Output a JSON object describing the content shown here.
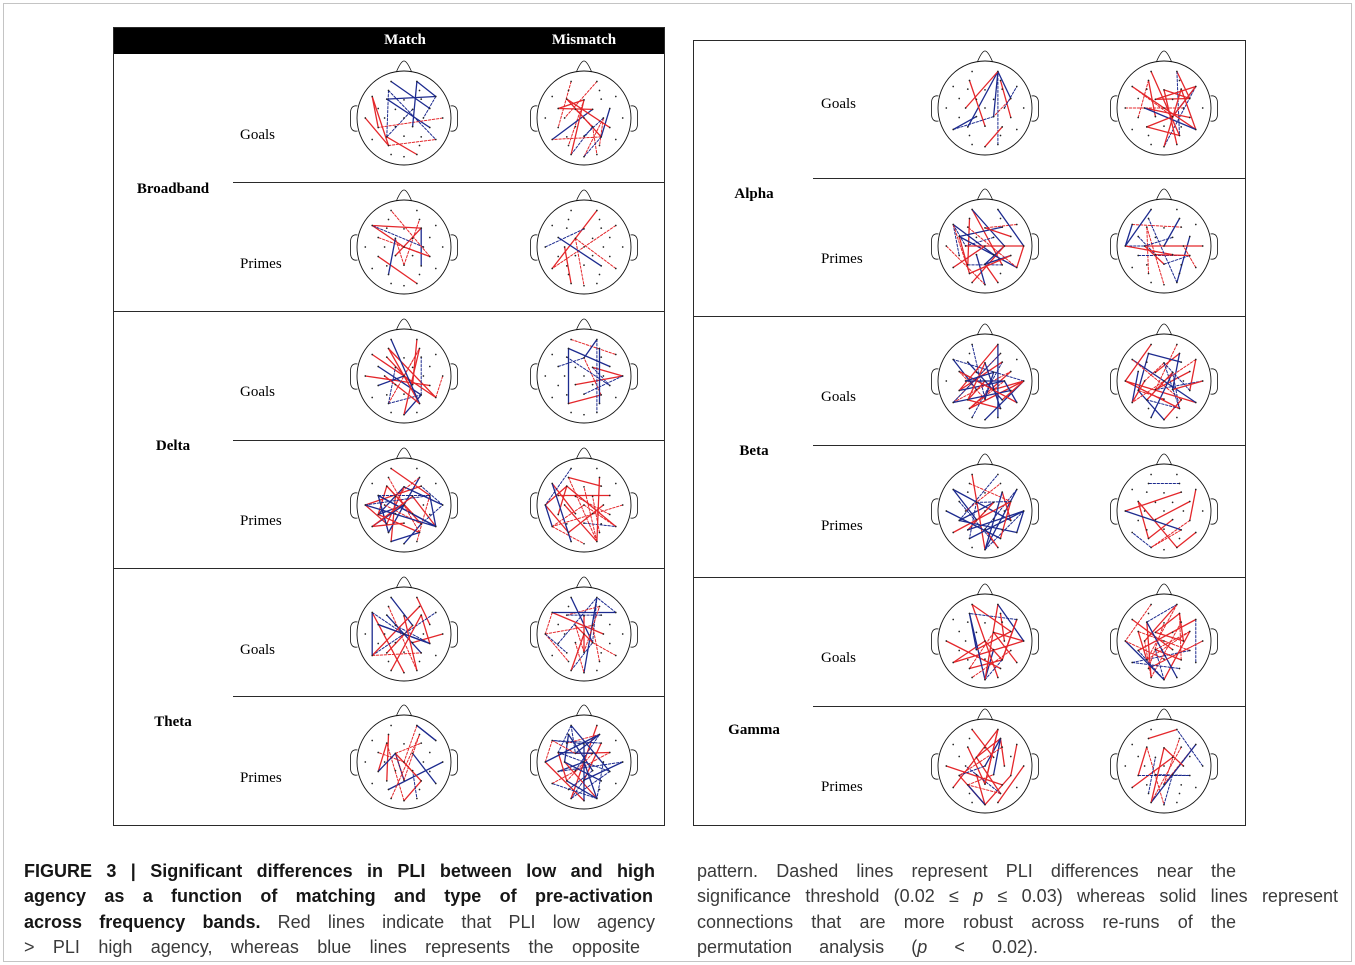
{
  "figure": {
    "header": {
      "match": "Match",
      "mismatch": "Mismatch"
    },
    "left_panel": {
      "bands": [
        {
          "name": "Broadband",
          "goals": "Goals",
          "primes": "Primes"
        },
        {
          "name": "Delta",
          "goals": "Goals",
          "primes": "Primes"
        },
        {
          "name": "Theta",
          "goals": "Goals",
          "primes": "Primes"
        }
      ]
    },
    "right_panel": {
      "bands": [
        {
          "name": "Alpha",
          "goals": "Goals",
          "primes": "Primes"
        },
        {
          "name": "Beta",
          "goals": "Goals",
          "primes": "Primes"
        },
        {
          "name": "Gamma",
          "goals": "Goals",
          "primes": "Primes"
        }
      ]
    },
    "line_colors": {
      "red": "#e4272b",
      "blue": "#1d2b8f"
    }
  },
  "caption": {
    "left": {
      "line1": "FIGURE 3 | Significant differences in PLI between low and high",
      "line2": "agency as a function of matching and type of pre-activation",
      "line3_bold": "across frequency bands.",
      "line3": "Red lines indicate that PLI low agency",
      "line4": "> PLI high agency, whereas blue lines represents the opposite"
    },
    "right": {
      "line1": "pattern. Dashed lines represent PLI differences near the",
      "line2_a": "significance threshold (0.02 ≤",
      "line2_p": "p",
      "line2_b": "≤ 0.03) whereas solid lines represent",
      "line3": "connections that are more robust across re-runs of the",
      "line4_a": "permutation analysis (",
      "line4_p": "p",
      "line4_b": "< 0.02)."
    }
  }
}
